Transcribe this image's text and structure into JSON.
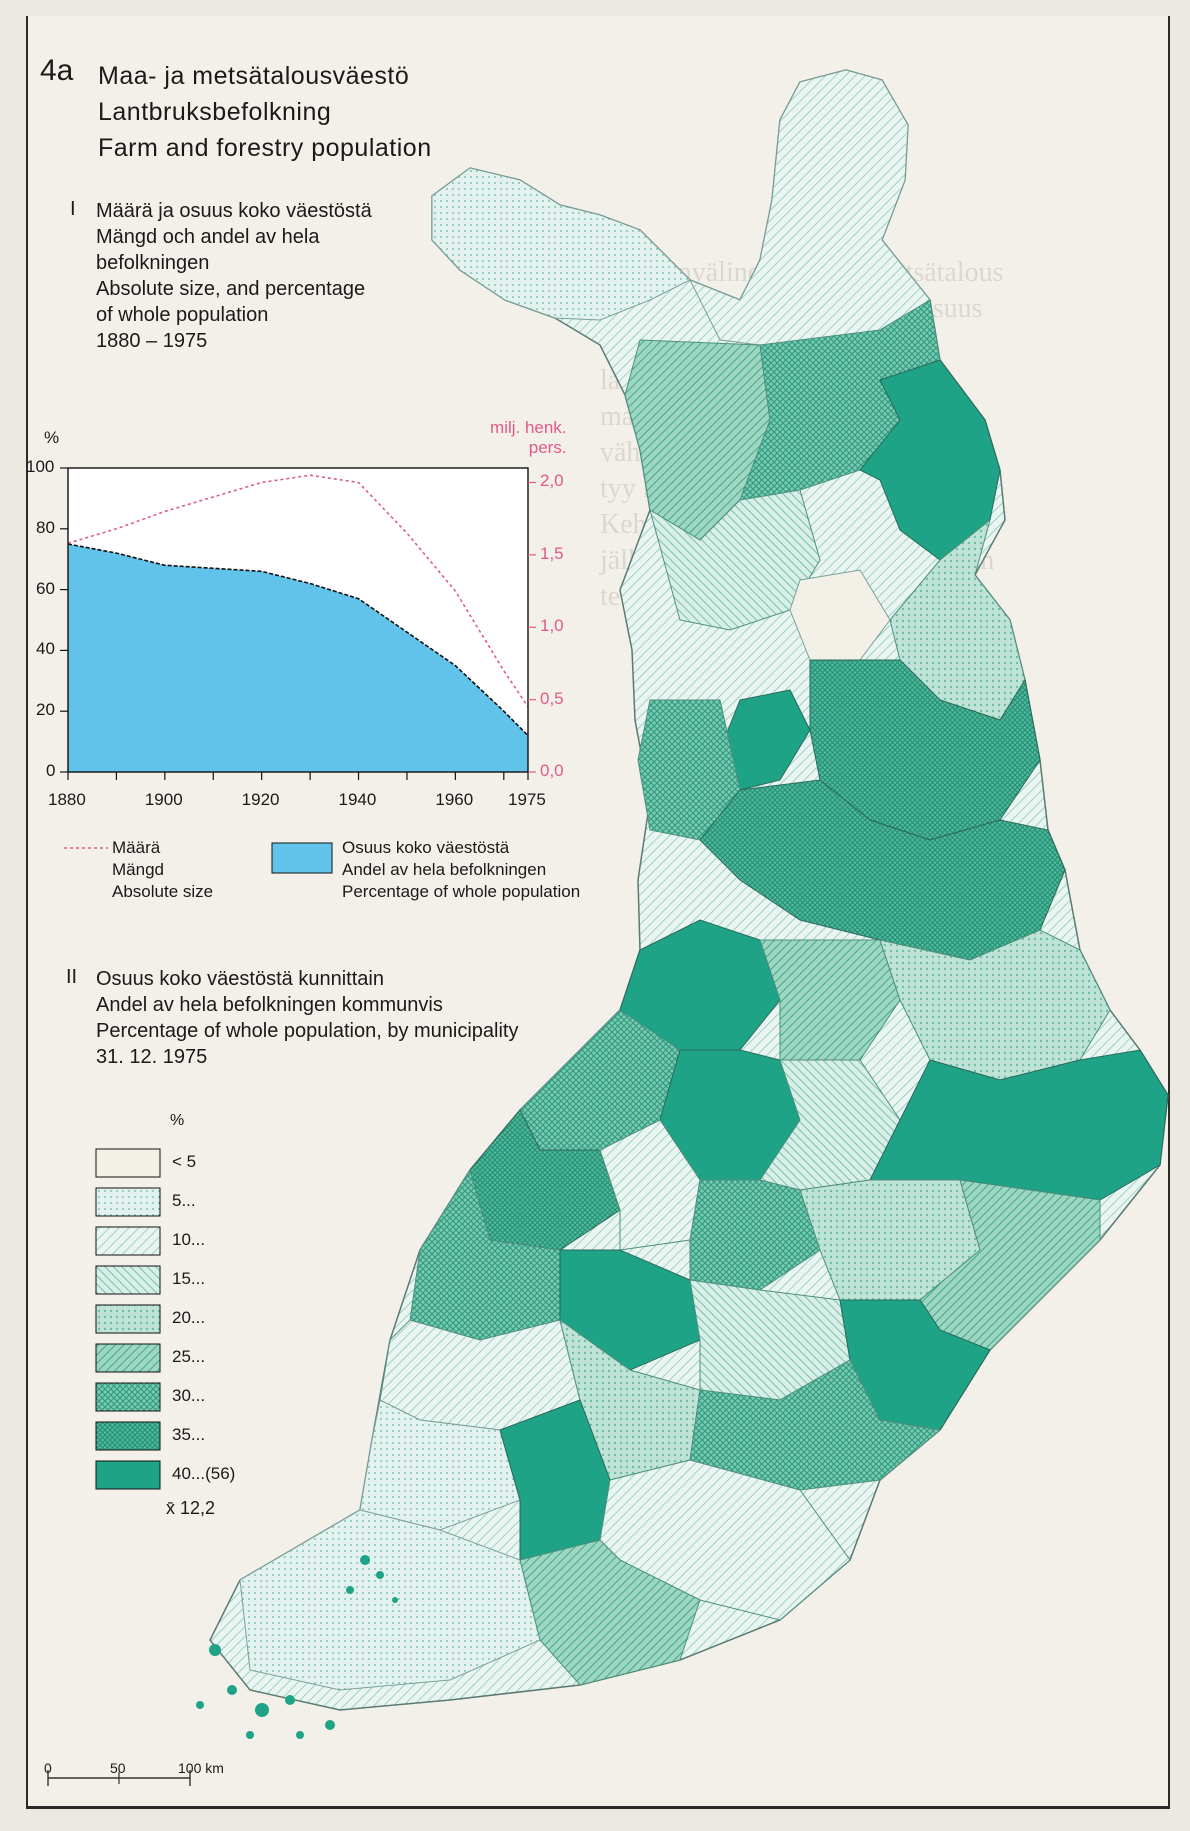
{
  "header": {
    "number": "4a",
    "title_fi": "Maa- ja metsätalousväestö",
    "title_sv": "Lantbruksbefolkning",
    "title_en": "Farm and forestry population"
  },
  "section1": {
    "numeral": "I",
    "lines": [
      "Määrä ja osuus koko väestöstä",
      "Mängd och andel av hela",
      "befolkningen",
      "Absolute size, and percentage",
      "of whole population",
      "1880 – 1975"
    ]
  },
  "chart_data": {
    "type": "area",
    "x": [
      1880,
      1890,
      1900,
      1910,
      1920,
      1930,
      1940,
      1950,
      1960,
      1970,
      1975
    ],
    "series": [
      {
        "name": "Osuus koko väestöstä / Andel av hela befolkningen / Percentage of whole population",
        "axis": "left",
        "values": [
          75,
          72,
          68,
          67,
          66,
          62,
          57,
          46,
          35,
          20,
          12
        ]
      },
      {
        "name": "Määrä / Mängd / Absolute size",
        "axis": "right",
        "values": [
          1.58,
          1.68,
          1.8,
          1.9,
          2.0,
          2.05,
          2.0,
          1.65,
          1.25,
          0.7,
          0.45
        ]
      }
    ],
    "xlim": [
      1880,
      1975
    ],
    "ylim_left": [
      0,
      100
    ],
    "ylim_right": [
      0,
      2.1
    ],
    "ylabel_left": "%",
    "ylabel_right": [
      "milj. henk.",
      "pers."
    ],
    "xticks": [
      "1880",
      "1900",
      "1920",
      "1940",
      "1960",
      "1975"
    ],
    "yticks_left": [
      "0",
      "20",
      "40",
      "60",
      "80",
      "100"
    ],
    "yticks_right": [
      "0,0",
      "0,5",
      "1,0",
      "1,5",
      "2,0"
    ],
    "area_color": "#62c3ea",
    "line_color": "#e05a8a"
  },
  "legend1": {
    "line": [
      "Määrä",
      "Mängd",
      "Absolute size"
    ],
    "area": [
      "Osuus koko väestöstä",
      "Andel av hela befolkningen",
      "Percentage of whole population"
    ]
  },
  "section2": {
    "numeral": "II",
    "lines": [
      "Osuus koko väestöstä kunnittain",
      "Andel av hela befolkningen kommunvis",
      "Percentage of whole population, by municipality",
      "31. 12. 1975"
    ]
  },
  "map_legend": {
    "unit": "%",
    "classes": [
      {
        "label": "< 5",
        "color": "#f3f0e8"
      },
      {
        "label": "5...",
        "color": "#dcefec"
      },
      {
        "label": "10...",
        "color": "#d5ece6"
      },
      {
        "label": "15...",
        "color": "#c4e6d9"
      },
      {
        "label": "20...",
        "color": "#aedcc9"
      },
      {
        "label": "25...",
        "color": "#93d2b6"
      },
      {
        "label": "30...",
        "color": "#6fc3a6"
      },
      {
        "label": "35...",
        "color": "#47b596"
      },
      {
        "label": "40...(56)",
        "color": "#1ea386"
      }
    ],
    "mean": "x̄ 12,2"
  },
  "scale": {
    "labels": [
      "0",
      "50",
      "100 km"
    ]
  },
  "colors": {
    "accent": "#1ea386",
    "chart_fill": "#62c3ea",
    "pink": "#e05a8a"
  }
}
